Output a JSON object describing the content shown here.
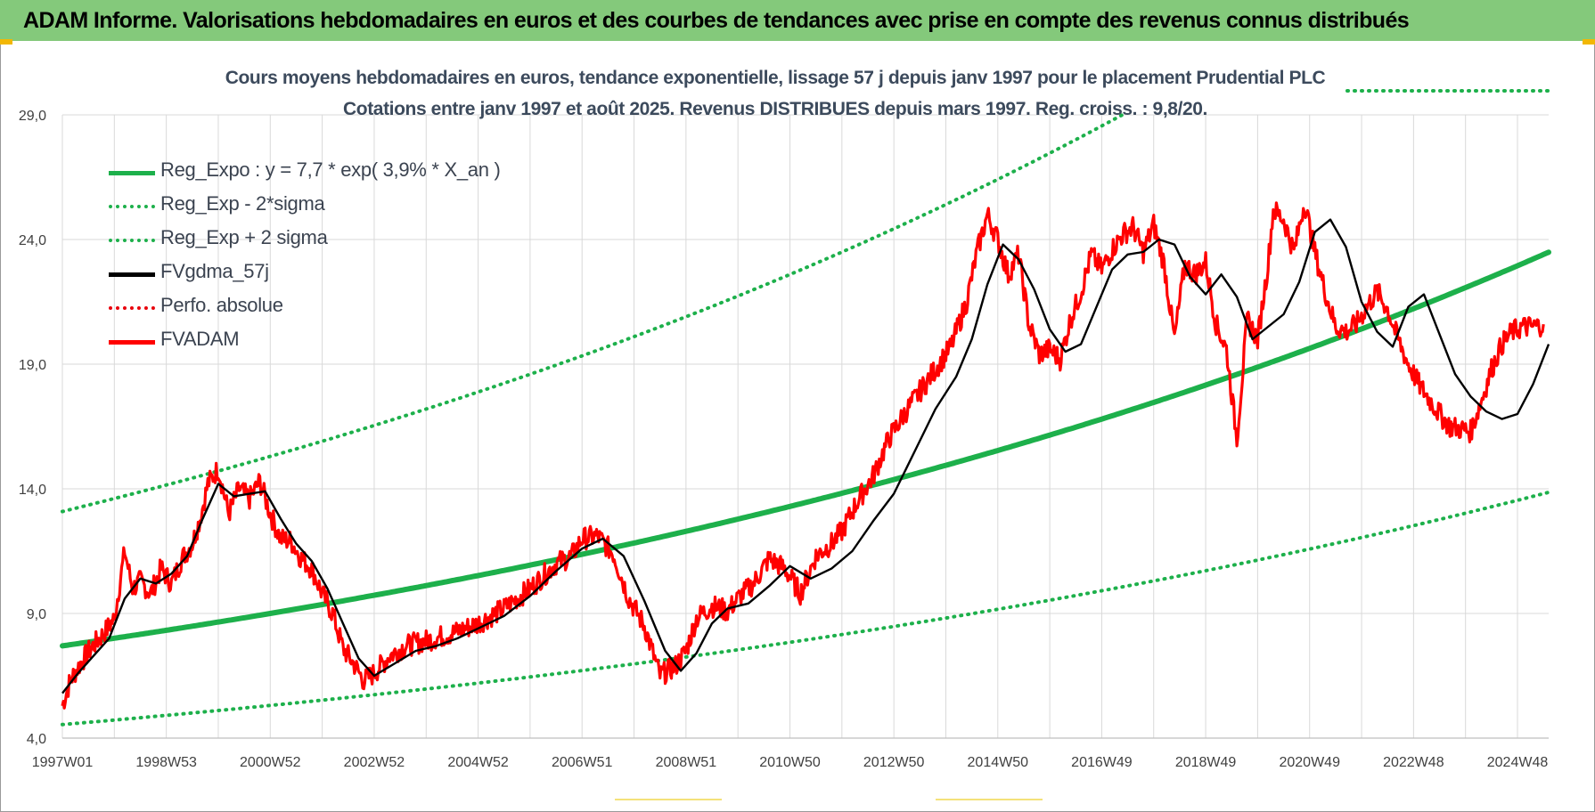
{
  "banner": {
    "title": "ADAM Informe. Valorisations hebdomadaires en euros et des courbes de tendances avec prise en compte des revenus connus distribués"
  },
  "chart_data": {
    "type": "line",
    "title": "Cours moyens hebdomadaires en euros, tendance exponentielle, lissage 57 j depuis janv 1997 pour le placement Prudential PLC",
    "subtitle": "Cotations entre janv 1997 et août 2025. Revenus DISTRIBUES depuis mars 1997. Reg. croiss. : 9,8/20.",
    "ylim": [
      4,
      29
    ],
    "yticks": [
      "4,0",
      "9,0",
      "14,0",
      "19,0",
      "24,0",
      "29,0"
    ],
    "xlim": [
      1997.0,
      2025.6
    ],
    "xticks": [
      "1997W01",
      "1998W53",
      "2000W52",
      "2002W52",
      "2004W52",
      "2006W51",
      "2008W51",
      "2010W50",
      "2012W50",
      "2014W50",
      "2016W49",
      "2018W49",
      "2020W49",
      "2022W48",
      "2024W48"
    ],
    "xtick_years": [
      1997.0,
      1999.0,
      2001.0,
      2003.0,
      2005.0,
      2007.0,
      2009.0,
      2011.0,
      2013.0,
      2015.0,
      2017.0,
      2019.0,
      2021.0,
      2023.0,
      2025.0
    ],
    "grid": true,
    "legend_position": "top-left",
    "colors": {
      "reg_expo": "#1db04b",
      "sigma": "#1db04b",
      "smooth": "#000000",
      "perfo": "#e8000b",
      "price": "#ff0000",
      "grid": "#d9d9d9",
      "axis_text": "#404040"
    },
    "legend": [
      {
        "label": "Reg_Expo : y = 7,7 * exp( 3,9% *  X_an )",
        "style": "solid",
        "color": "#1db04b"
      },
      {
        "label": "Reg_Exp - 2*sigma",
        "style": "dotted",
        "color": "#1db04b"
      },
      {
        "label": "Reg_Exp + 2 sigma",
        "style": "dotted",
        "color": "#1db04b"
      },
      {
        "label": "FVgdma_57j",
        "style": "solid",
        "color": "#000000"
      },
      {
        "label": "Perfo. absolue",
        "style": "dotted",
        "color": "#e8000b"
      },
      {
        "label": "FVADAM",
        "style": "solid",
        "color": "#ff0000"
      }
    ],
    "regression": {
      "a": 7.7,
      "rate_pct": 3.9,
      "start_year": 1997.0,
      "lower_factor": 0.59,
      "upper_factor": 1.7
    },
    "series": [
      {
        "name": "FVADAM",
        "x": [
          1997.0,
          1997.15,
          1997.35,
          1997.55,
          1997.8,
          1998.0,
          1998.2,
          1998.35,
          1998.5,
          1998.7,
          1998.9,
          1999.1,
          1999.3,
          1999.5,
          1999.65,
          1999.8,
          2000.0,
          2000.2,
          2000.4,
          2000.6,
          2000.8,
          2001.0,
          2001.2,
          2001.4,
          2001.6,
          2001.8,
          2002.0,
          2002.2,
          2002.4,
          2002.6,
          2002.8,
          2003.0,
          2003.3,
          2003.6,
          2004.0,
          2004.5,
          2005.0,
          2005.5,
          2006.0,
          2006.3,
          2006.5,
          2006.8,
          2007.0,
          2007.3,
          2007.6,
          2007.9,
          2008.2,
          2008.5,
          2008.8,
          2009.0,
          2009.2,
          2009.5,
          2009.8,
          2010.0,
          2010.3,
          2010.6,
          2010.9,
          2011.2,
          2011.5,
          2011.8,
          2012.0,
          2012.3,
          2012.6,
          2012.9,
          2013.2,
          2013.5,
          2013.8,
          2014.1,
          2014.4,
          2014.6,
          2014.8,
          2015.0,
          2015.2,
          2015.4,
          2015.6,
          2015.8,
          2016.0,
          2016.2,
          2016.4,
          2016.6,
          2016.8,
          2017.0,
          2017.2,
          2017.4,
          2017.6,
          2017.8,
          2018.0,
          2018.2,
          2018.4,
          2018.6,
          2018.8,
          2019.0,
          2019.2,
          2019.4,
          2019.6,
          2019.8,
          2020.0,
          2020.1,
          2020.2,
          2020.3,
          2020.5,
          2020.7,
          2020.9,
          2021.1,
          2021.3,
          2021.5,
          2021.7,
          2021.9,
          2022.1,
          2022.3,
          2022.5,
          2022.7,
          2022.9,
          2023.1,
          2023.3,
          2023.5,
          2023.7,
          2023.9,
          2024.1,
          2024.3,
          2024.5,
          2024.7,
          2024.9,
          2025.1,
          2025.3,
          2025.5
        ],
        "values": [
          5.3,
          6.3,
          7.0,
          7.6,
          8.2,
          8.8,
          11.5,
          10.0,
          10.3,
          9.8,
          10.8,
          10.2,
          11.2,
          11.8,
          12.8,
          14.2,
          14.8,
          13.0,
          14.0,
          13.6,
          14.3,
          13.0,
          12.0,
          11.9,
          11.2,
          10.8,
          9.8,
          9.0,
          7.6,
          7.0,
          6.3,
          6.6,
          7.3,
          7.7,
          7.9,
          8.2,
          8.6,
          9.2,
          10.0,
          10.6,
          11.0,
          11.3,
          12.0,
          12.1,
          11.4,
          9.6,
          8.5,
          6.5,
          6.9,
          7.5,
          8.8,
          9.3,
          9.1,
          9.6,
          10.2,
          11.2,
          10.8,
          9.8,
          11.3,
          11.8,
          12.3,
          13.5,
          14.5,
          16.0,
          17.0,
          17.9,
          18.8,
          19.7,
          21.5,
          23.5,
          25.0,
          24.0,
          22.6,
          23.4,
          20.6,
          19.4,
          19.6,
          19.2,
          20.8,
          21.9,
          23.4,
          22.8,
          23.6,
          24.2,
          24.5,
          23.5,
          24.6,
          23.0,
          20.0,
          23.0,
          22.6,
          23.1,
          20.6,
          19.6,
          16.0,
          20.8,
          20.0,
          21.5,
          23.0,
          25.2,
          24.8,
          23.5,
          25.5,
          23.5,
          21.9,
          20.5,
          20.3,
          20.6,
          21.3,
          21.9,
          21.2,
          20.0,
          19.0,
          18.2,
          17.6,
          17.0,
          16.5,
          16.4,
          16.3,
          17.5,
          18.8,
          19.8,
          20.3,
          20.5,
          20.5,
          20.6
        ]
      },
      {
        "name": "FVgdma_57j",
        "x": [
          1997.0,
          1997.3,
          1997.6,
          1997.9,
          1998.2,
          1998.5,
          1998.8,
          1999.1,
          1999.4,
          1999.7,
          2000.0,
          2000.3,
          2000.6,
          2000.9,
          2001.2,
          2001.5,
          2001.8,
          2002.1,
          2002.4,
          2002.7,
          2003.0,
          2003.4,
          2003.8,
          2004.2,
          2004.6,
          2005.0,
          2005.5,
          2006.0,
          2006.5,
          2007.0,
          2007.4,
          2007.8,
          2008.2,
          2008.6,
          2008.9,
          2009.2,
          2009.5,
          2009.8,
          2010.2,
          2010.6,
          2011.0,
          2011.4,
          2011.8,
          2012.2,
          2012.6,
          2013.0,
          2013.4,
          2013.8,
          2014.2,
          2014.5,
          2014.8,
          2015.1,
          2015.4,
          2015.7,
          2016.0,
          2016.3,
          2016.6,
          2016.9,
          2017.2,
          2017.5,
          2017.8,
          2018.1,
          2018.4,
          2018.7,
          2019.0,
          2019.3,
          2019.6,
          2019.9,
          2020.2,
          2020.5,
          2020.8,
          2021.1,
          2021.4,
          2021.7,
          2022.0,
          2022.3,
          2022.6,
          2022.9,
          2023.2,
          2023.5,
          2023.8,
          2024.1,
          2024.4,
          2024.7,
          2025.0,
          2025.3,
          2025.6
        ],
        "values": [
          5.8,
          6.6,
          7.3,
          8.0,
          9.6,
          10.4,
          10.2,
          10.6,
          11.3,
          12.8,
          14.2,
          13.7,
          13.8,
          13.9,
          12.8,
          11.8,
          11.1,
          10.0,
          8.6,
          7.2,
          6.5,
          7.0,
          7.5,
          7.7,
          8.0,
          8.4,
          8.9,
          9.7,
          10.7,
          11.6,
          12.0,
          11.3,
          9.5,
          7.5,
          6.7,
          7.4,
          8.6,
          9.2,
          9.4,
          10.1,
          10.9,
          10.4,
          10.8,
          11.5,
          12.7,
          13.8,
          15.5,
          17.2,
          18.5,
          20.0,
          22.2,
          23.8,
          23.2,
          22.0,
          20.4,
          19.5,
          19.8,
          21.3,
          22.8,
          23.4,
          23.5,
          24.0,
          23.8,
          22.5,
          21.8,
          22.6,
          21.7,
          20.0,
          20.5,
          21.0,
          22.3,
          24.3,
          24.8,
          23.7,
          21.5,
          20.3,
          19.7,
          21.3,
          21.8,
          20.2,
          18.6,
          17.7,
          17.1,
          16.8,
          17.0,
          18.2,
          19.8
        ]
      }
    ]
  }
}
